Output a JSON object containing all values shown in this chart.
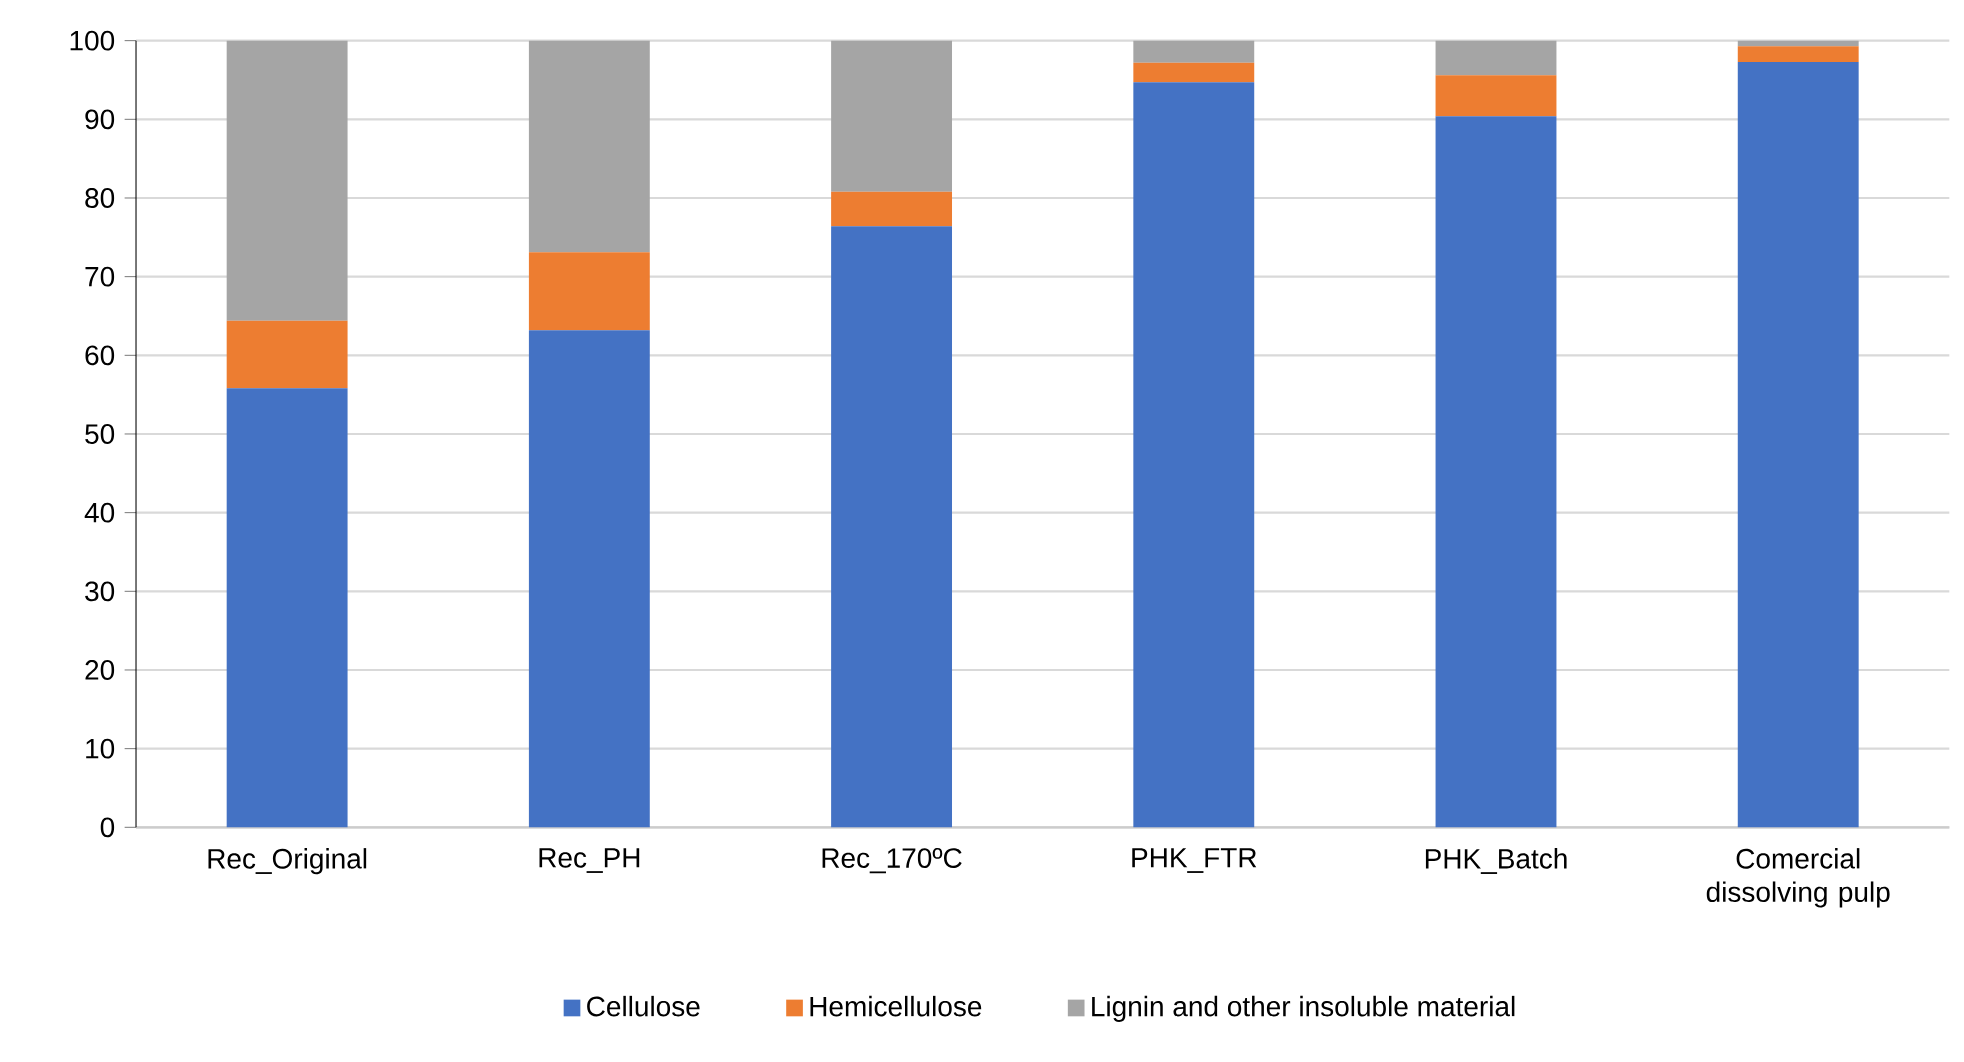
{
  "chart_data": {
    "type": "bar",
    "stacked": true,
    "categories": [
      "Rec_Original",
      "Rec_PH",
      "Rec_170ºC",
      "PHK_FTR",
      "PHK_Batch",
      "Comercial dissolving pulp"
    ],
    "series": [
      {
        "name": "Cellulose",
        "color": "#4472c4",
        "values": [
          55.8,
          63.2,
          76.4,
          94.7,
          90.4,
          97.3
        ]
      },
      {
        "name": "Hemicellulose",
        "color": "#ed7d31",
        "values": [
          8.6,
          9.9,
          4.4,
          2.5,
          5.2,
          2.0
        ]
      },
      {
        "name": "Lignin and other insoluble material",
        "color": "#a5a5a5",
        "values": [
          35.6,
          26.9,
          19.2,
          2.8,
          4.4,
          0.7
        ]
      }
    ],
    "ylim": [
      0,
      100
    ],
    "yticks": [
      0,
      10,
      20,
      30,
      40,
      50,
      60,
      70,
      80,
      90,
      100
    ],
    "grid": "y",
    "legend": "bottom"
  }
}
